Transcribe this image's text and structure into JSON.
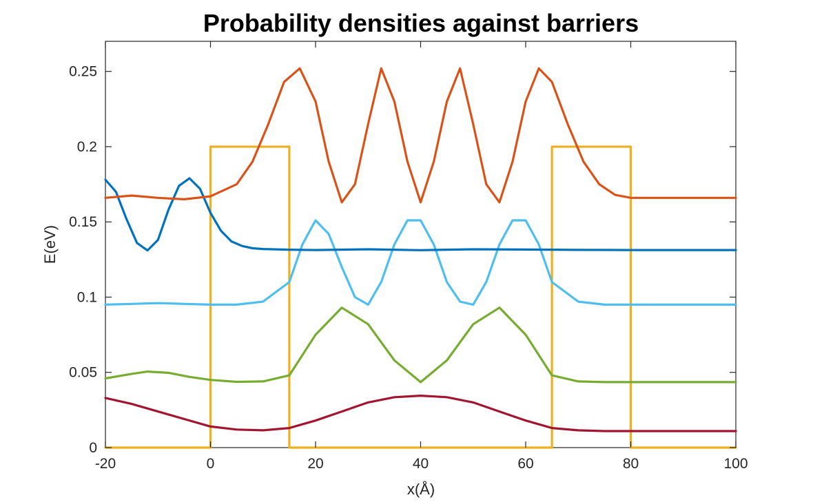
{
  "chart_data": {
    "type": "line",
    "title": "Probability densities against barriers",
    "xlabel": "x(Å)",
    "ylabel": "E(eV)",
    "xlim": [
      -20,
      100
    ],
    "ylim": [
      0,
      0.27
    ],
    "xticks": [
      -20,
      0,
      20,
      40,
      60,
      80,
      100
    ],
    "xtick_labels": [
      "-20",
      "0",
      "20",
      "40",
      "60",
      "80",
      "100"
    ],
    "yticks": [
      0,
      0.05,
      0.1,
      0.15,
      0.2,
      0.25
    ],
    "ytick_labels": [
      "0",
      "0.05",
      "0.1",
      "0.15",
      "0.2",
      "0.25"
    ],
    "grid": false,
    "series": [
      {
        "color": "#EDB120",
        "x": [
          -20,
          0,
          0,
          15,
          15,
          65,
          65,
          80,
          80,
          100
        ],
        "y": [
          0,
          0,
          0.2,
          0.2,
          0,
          0,
          0.2,
          0.2,
          0,
          0
        ]
      },
      {
        "color": "#A2142F",
        "x": [
          -20,
          -15,
          -10,
          -5,
          0,
          5,
          10,
          15,
          20,
          25,
          30,
          35,
          40,
          45,
          50,
          55,
          60,
          65,
          70,
          75,
          80,
          90,
          100
        ],
        "y": [
          0.033,
          0.029,
          0.024,
          0.019,
          0.014,
          0.012,
          0.0115,
          0.013,
          0.018,
          0.024,
          0.03,
          0.0335,
          0.0345,
          0.0335,
          0.03,
          0.024,
          0.018,
          0.013,
          0.0115,
          0.011,
          0.011,
          0.011,
          0.011
        ]
      },
      {
        "color": "#77AC30",
        "x": [
          -20,
          -15,
          -12,
          -8,
          -4,
          0,
          5,
          10,
          15,
          20,
          25,
          30,
          35,
          40,
          45,
          50,
          55,
          60,
          65,
          70,
          75,
          80,
          90,
          100
        ],
        "y": [
          0.046,
          0.049,
          0.0505,
          0.0497,
          0.047,
          0.045,
          0.0437,
          0.044,
          0.048,
          0.075,
          0.093,
          0.082,
          0.058,
          0.0435,
          0.058,
          0.082,
          0.093,
          0.075,
          0.048,
          0.044,
          0.0435,
          0.0435,
          0.0435,
          0.0435
        ]
      },
      {
        "color": "#4DBEEE",
        "x": [
          -20,
          -15,
          -10,
          -5,
          0,
          5,
          10,
          15,
          17.5,
          20,
          22.5,
          25,
          27.5,
          30,
          32.5,
          35,
          37.5,
          40,
          42.5,
          45,
          47.5,
          50,
          52.5,
          55,
          57.5,
          60,
          62.5,
          65,
          70,
          75,
          80,
          90,
          100
        ],
        "y": [
          0.095,
          0.0955,
          0.096,
          0.0955,
          0.095,
          0.095,
          0.097,
          0.11,
          0.135,
          0.151,
          0.142,
          0.12,
          0.1,
          0.095,
          0.11,
          0.135,
          0.151,
          0.151,
          0.135,
          0.11,
          0.097,
          0.095,
          0.11,
          0.135,
          0.151,
          0.151,
          0.135,
          0.11,
          0.097,
          0.095,
          0.095,
          0.095,
          0.095
        ]
      },
      {
        "color": "#0072BD",
        "x": [
          -20,
          -18,
          -16,
          -14,
          -12,
          -10,
          -8,
          -6,
          -4,
          -2,
          0,
          2,
          4,
          6,
          8,
          10,
          15,
          20,
          30,
          40,
          50,
          60,
          70,
          80,
          90,
          100
        ],
        "y": [
          0.178,
          0.17,
          0.152,
          0.136,
          0.131,
          0.138,
          0.158,
          0.174,
          0.179,
          0.172,
          0.156,
          0.144,
          0.137,
          0.134,
          0.1325,
          0.132,
          0.1315,
          0.1313,
          0.1318,
          0.1312,
          0.1318,
          0.1316,
          0.1314,
          0.1313,
          0.1313,
          0.1313
        ]
      },
      {
        "color": "#D95319",
        "x": [
          -20,
          -15,
          -10,
          -5,
          0,
          5,
          8,
          11,
          14,
          17,
          20,
          22.5,
          25,
          27.5,
          30,
          32.5,
          35,
          37.5,
          40,
          42.5,
          45,
          47.5,
          50,
          52.5,
          55,
          57.5,
          60,
          62.5,
          65,
          68,
          71,
          74,
          77,
          80,
          90,
          100
        ],
        "y": [
          0.166,
          0.1675,
          0.166,
          0.165,
          0.167,
          0.175,
          0.19,
          0.215,
          0.243,
          0.252,
          0.23,
          0.19,
          0.163,
          0.175,
          0.215,
          0.252,
          0.23,
          0.19,
          0.163,
          0.19,
          0.23,
          0.252,
          0.215,
          0.175,
          0.163,
          0.19,
          0.23,
          0.252,
          0.243,
          0.215,
          0.19,
          0.175,
          0.168,
          0.166,
          0.166,
          0.166
        ]
      }
    ]
  }
}
